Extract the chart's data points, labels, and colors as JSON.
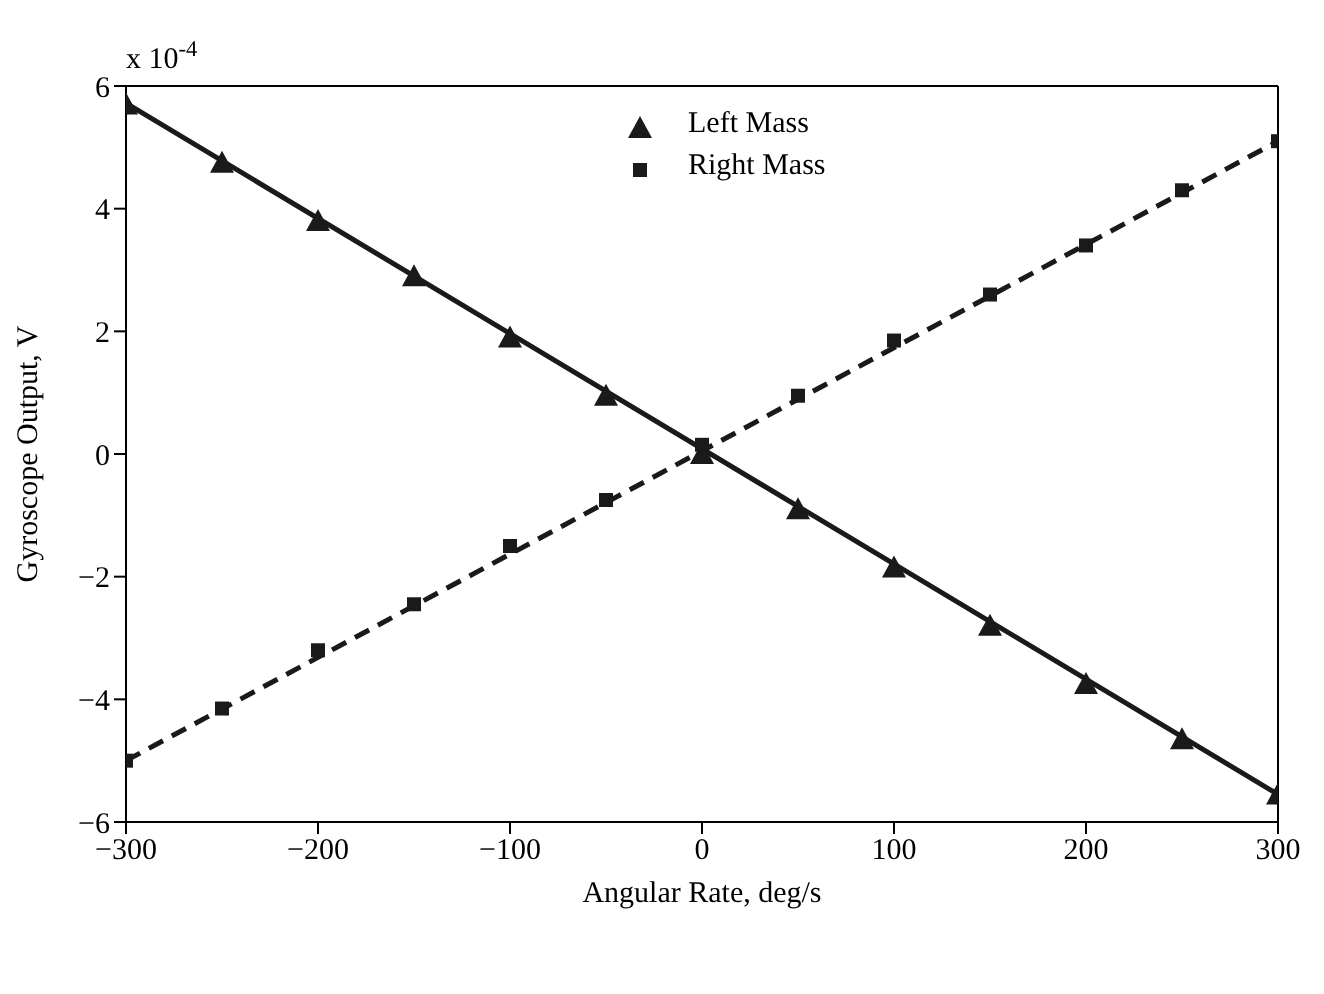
{
  "chart_data": {
    "type": "scatter",
    "xlabel": "Angular Rate, deg/s",
    "ylabel": "Gyroscope Output,  V",
    "annotations": [
      "x 10$^{-4}$"
    ],
    "xlim": [
      -300,
      300
    ],
    "xticks": [
      -300,
      -200,
      -100,
      0,
      100,
      200,
      300
    ],
    "ylim": [
      -6,
      6
    ],
    "yticks": [
      -6,
      -4,
      -2,
      0,
      2,
      4,
      6
    ],
    "legend": "top",
    "series": [
      {
        "name": "Left Mass",
        "marker": "triangle",
        "color": "#1a1a1a",
        "x": [
          -300,
          -250,
          -200,
          -150,
          -100,
          -50,
          0,
          50,
          100,
          150,
          200,
          250,
          300
        ],
        "values": [
          5.7,
          4.75,
          3.8,
          2.9,
          1.9,
          0.95,
          0,
          -0.9,
          -1.85,
          -2.8,
          -3.75,
          -4.65,
          -5.55
        ]
      },
      {
        "name": "Right Mass",
        "marker": "square",
        "color": "#1a1a1a",
        "x": [
          -300,
          -250,
          -200,
          -150,
          -100,
          -50,
          0,
          50,
          100,
          150,
          200,
          250,
          300
        ],
        "values": [
          -5.0,
          -4.15,
          -3.2,
          -2.45,
          -1.5,
          -0.75,
          0.15,
          0.95,
          1.85,
          2.6,
          3.4,
          4.3,
          5.1
        ]
      },
      {
        "type": "line",
        "line_style": "solid",
        "color": "#1a1a1a",
        "x": [
          -300,
          300
        ],
        "values": [
          5.72,
          -5.55
        ]
      },
      {
        "type": "line",
        "line_style": "dashed",
        "color": "#1a1a1a",
        "x": [
          -300,
          300
        ],
        "values": [
          -5.0,
          5.1
        ]
      }
    ]
  }
}
